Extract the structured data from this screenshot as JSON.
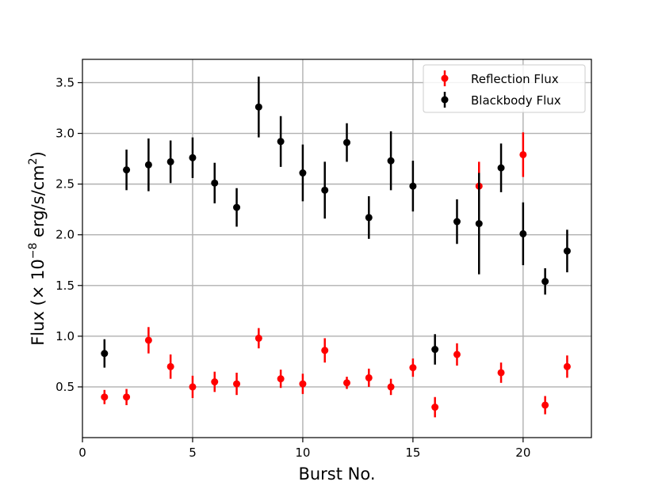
{
  "chart_data": {
    "type": "scatter",
    "xlabel": "Burst No.",
    "ylabel_prefix": "Flux (× 10",
    "ylabel_exp": "−8",
    "ylabel_mid": " erg/s/cm",
    "ylabel_exp2": "2",
    "ylabel_suffix": ")",
    "xlim": [
      0,
      23.1
    ],
    "ylim": [
      0.0,
      3.73
    ],
    "xticks": [
      0,
      5,
      10,
      15,
      20
    ],
    "yticks": [
      0.5,
      1.0,
      1.5,
      2.0,
      2.5,
      3.0,
      3.5
    ],
    "xtick_labels": [
      "0",
      "5",
      "10",
      "15",
      "20"
    ],
    "ytick_labels": [
      "0.5",
      "1.0",
      "1.5",
      "2.0",
      "2.5",
      "3.0",
      "3.5"
    ],
    "grid": true,
    "legend_position": "top-right",
    "series": [
      {
        "name": "Reflection Flux",
        "color": "#ff0000",
        "x": [
          1,
          2,
          3,
          4,
          5,
          6,
          7,
          8,
          9,
          10,
          11,
          12,
          13,
          14,
          15,
          16,
          17,
          18,
          20,
          19,
          21,
          22
        ],
        "y": [
          0.4,
          0.4,
          0.96,
          0.7,
          0.5,
          0.55,
          0.53,
          0.98,
          0.58,
          0.53,
          0.86,
          0.54,
          0.59,
          0.5,
          0.69,
          0.3,
          0.82,
          2.48,
          2.79,
          0.64,
          0.32,
          0.7
        ],
        "err": [
          0.07,
          0.08,
          0.13,
          0.12,
          0.11,
          0.1,
          0.11,
          0.1,
          0.09,
          0.1,
          0.12,
          0.06,
          0.09,
          0.08,
          0.09,
          0.1,
          0.11,
          0.24,
          0.22,
          0.1,
          0.09,
          0.11
        ]
      },
      {
        "name": "Blackbody Flux",
        "color": "#000000",
        "x": [
          1,
          2,
          3,
          4,
          5,
          6,
          7,
          8,
          9,
          10,
          11,
          12,
          13,
          14,
          15,
          16,
          17,
          18,
          19,
          20,
          21,
          22
        ],
        "y": [
          0.83,
          2.64,
          2.69,
          2.72,
          2.76,
          2.51,
          2.27,
          3.26,
          2.92,
          2.61,
          2.44,
          2.91,
          2.17,
          2.73,
          2.48,
          0.87,
          2.13,
          2.11,
          2.66,
          2.01,
          1.54,
          1.84
        ],
        "err": [
          0.14,
          0.2,
          0.26,
          0.21,
          0.2,
          0.2,
          0.19,
          0.3,
          0.25,
          0.28,
          0.28,
          0.19,
          0.21,
          0.29,
          0.25,
          0.15,
          0.22,
          0.5,
          0.24,
          0.31,
          0.13,
          0.21
        ]
      }
    ]
  }
}
